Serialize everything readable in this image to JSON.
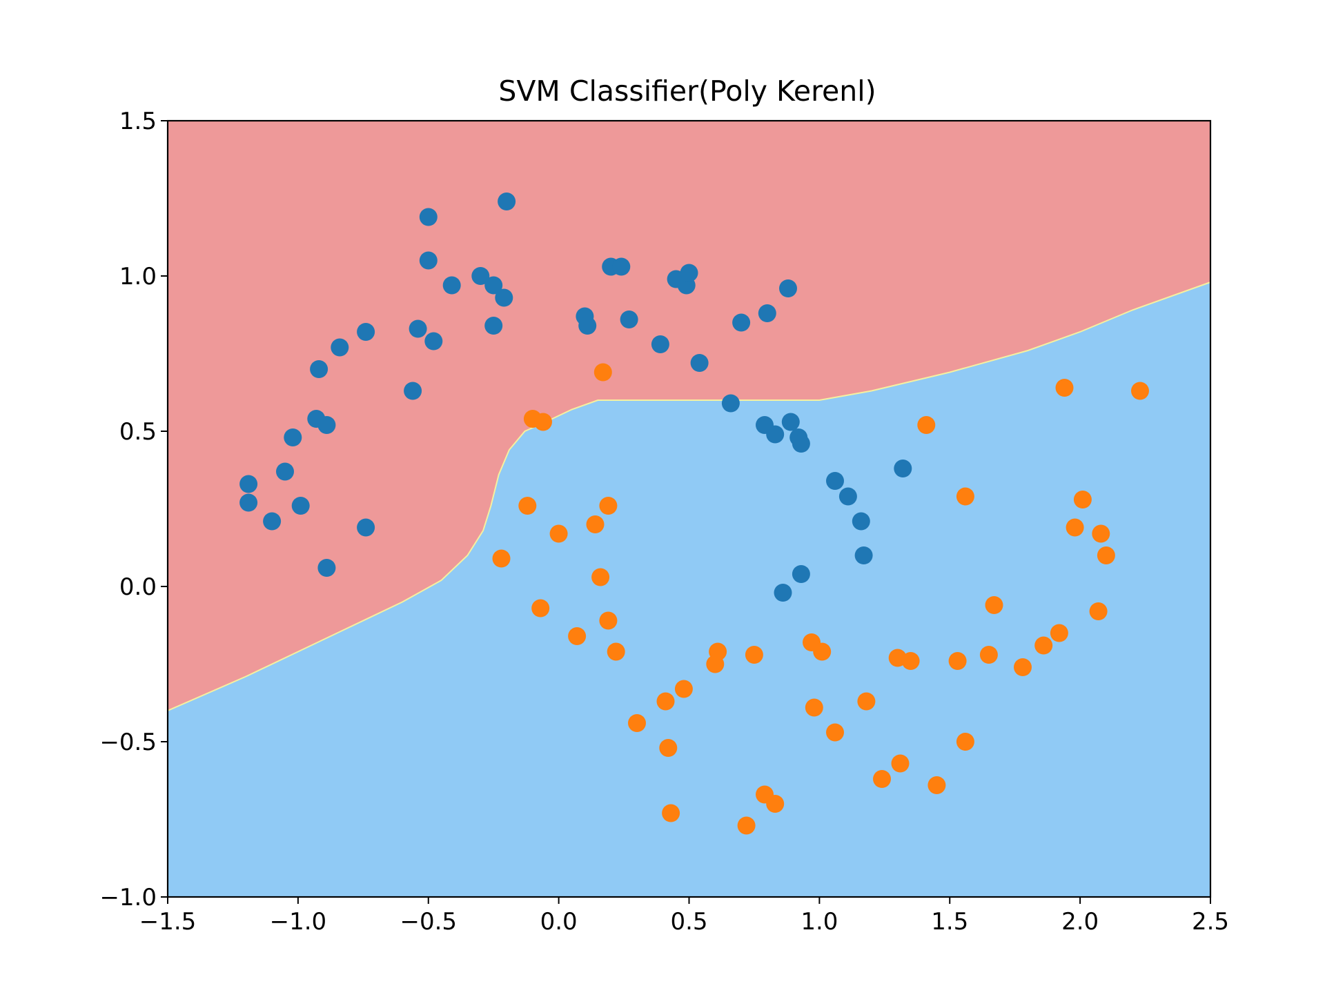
{
  "chart_data": {
    "type": "scatter",
    "title": "SVM Classifier(Poly Kerenl)",
    "xlabel": "",
    "ylabel": "",
    "xlim": [
      -1.5,
      2.5
    ],
    "ylim": [
      -1.0,
      1.5
    ],
    "xticks": [
      -1.5,
      -1.0,
      -0.5,
      0.0,
      0.5,
      1.0,
      1.5,
      2.0,
      2.5
    ],
    "xtick_labels": [
      "−1.5",
      "−1.0",
      "−0.5",
      "0.0",
      "0.5",
      "1.0",
      "1.5",
      "2.0",
      "2.5"
    ],
    "yticks": [
      -1.0,
      -0.5,
      0.0,
      0.5,
      1.0,
      1.5
    ],
    "ytick_labels": [
      "−1.0",
      "−0.5",
      "0.0",
      "0.5",
      "1.0",
      "1.5"
    ],
    "grid": false,
    "legend": "none",
    "regions": {
      "class0_color": "#ee9999",
      "class1_color": "#90caf5",
      "boundary_color": "#f5f0a0",
      "decision_boundary": [
        [
          -1.5,
          -0.4
        ],
        [
          -1.2,
          -0.29
        ],
        [
          -1.0,
          -0.21
        ],
        [
          -0.8,
          -0.13
        ],
        [
          -0.6,
          -0.05
        ],
        [
          -0.45,
          0.02
        ],
        [
          -0.35,
          0.1
        ],
        [
          -0.29,
          0.18
        ],
        [
          -0.26,
          0.26
        ],
        [
          -0.23,
          0.36
        ],
        [
          -0.19,
          0.44
        ],
        [
          -0.13,
          0.5
        ],
        [
          -0.05,
          0.53
        ],
        [
          0.05,
          0.57
        ],
        [
          0.15,
          0.6
        ],
        [
          0.4,
          0.6
        ],
        [
          0.7,
          0.6
        ],
        [
          1.0,
          0.6
        ],
        [
          1.2,
          0.63
        ],
        [
          1.5,
          0.69
        ],
        [
          1.8,
          0.76
        ],
        [
          2.0,
          0.82
        ],
        [
          2.2,
          0.89
        ],
        [
          2.5,
          0.98
        ]
      ]
    },
    "series": [
      {
        "color": "#1f77b4",
        "points": [
          [
            -1.19,
            0.33
          ],
          [
            -1.19,
            0.27
          ],
          [
            -1.1,
            0.21
          ],
          [
            -1.05,
            0.37
          ],
          [
            -1.02,
            0.48
          ],
          [
            -0.99,
            0.26
          ],
          [
            -0.93,
            0.54
          ],
          [
            -0.92,
            0.7
          ],
          [
            -0.89,
            0.52
          ],
          [
            -0.89,
            0.06
          ],
          [
            -0.84,
            0.77
          ],
          [
            -0.74,
            0.82
          ],
          [
            -0.74,
            0.19
          ],
          [
            -0.56,
            0.63
          ],
          [
            -0.54,
            0.83
          ],
          [
            -0.5,
            1.19
          ],
          [
            -0.5,
            1.05
          ],
          [
            -0.48,
            0.79
          ],
          [
            -0.41,
            0.97
          ],
          [
            -0.3,
            1.0
          ],
          [
            -0.25,
            0.97
          ],
          [
            -0.25,
            0.84
          ],
          [
            -0.21,
            0.93
          ],
          [
            -0.2,
            1.24
          ],
          [
            0.1,
            0.87
          ],
          [
            0.11,
            0.84
          ],
          [
            0.2,
            1.03
          ],
          [
            0.24,
            1.03
          ],
          [
            0.27,
            0.86
          ],
          [
            0.39,
            0.78
          ],
          [
            0.45,
            0.99
          ],
          [
            0.49,
            0.97
          ],
          [
            0.5,
            1.01
          ],
          [
            0.54,
            0.72
          ],
          [
            0.66,
            0.59
          ],
          [
            0.7,
            0.85
          ],
          [
            0.79,
            0.52
          ],
          [
            0.8,
            0.88
          ],
          [
            0.83,
            0.49
          ],
          [
            0.86,
            -0.02
          ],
          [
            0.88,
            0.96
          ],
          [
            0.89,
            0.53
          ],
          [
            0.92,
            0.48
          ],
          [
            0.93,
            0.04
          ],
          [
            0.93,
            0.46
          ],
          [
            1.06,
            0.34
          ],
          [
            1.11,
            0.29
          ],
          [
            1.16,
            0.21
          ],
          [
            1.17,
            0.1
          ],
          [
            1.32,
            0.38
          ]
        ]
      },
      {
        "color": "#ff7f0e",
        "points": [
          [
            -0.22,
            0.09
          ],
          [
            -0.12,
            0.26
          ],
          [
            -0.1,
            0.54
          ],
          [
            -0.07,
            -0.07
          ],
          [
            -0.06,
            0.53
          ],
          [
            0.0,
            0.17
          ],
          [
            0.07,
            -0.16
          ],
          [
            0.14,
            0.2
          ],
          [
            0.16,
            0.03
          ],
          [
            0.17,
            0.69
          ],
          [
            0.19,
            -0.11
          ],
          [
            0.19,
            0.26
          ],
          [
            0.22,
            -0.21
          ],
          [
            0.3,
            -0.44
          ],
          [
            0.41,
            -0.37
          ],
          [
            0.42,
            -0.52
          ],
          [
            0.43,
            -0.73
          ],
          [
            0.48,
            -0.33
          ],
          [
            0.6,
            -0.25
          ],
          [
            0.61,
            -0.21
          ],
          [
            0.75,
            -0.22
          ],
          [
            0.72,
            -0.77
          ],
          [
            0.79,
            -0.67
          ],
          [
            0.83,
            -0.7
          ],
          [
            0.97,
            -0.18
          ],
          [
            0.98,
            -0.39
          ],
          [
            1.01,
            -0.21
          ],
          [
            1.06,
            -0.47
          ],
          [
            1.18,
            -0.37
          ],
          [
            1.24,
            -0.62
          ],
          [
            1.3,
            -0.23
          ],
          [
            1.31,
            -0.57
          ],
          [
            1.35,
            -0.24
          ],
          [
            1.41,
            0.52
          ],
          [
            1.45,
            -0.64
          ],
          [
            1.53,
            -0.24
          ],
          [
            1.56,
            0.29
          ],
          [
            1.56,
            -0.5
          ],
          [
            1.65,
            -0.22
          ],
          [
            1.67,
            -0.06
          ],
          [
            1.78,
            -0.26
          ],
          [
            1.86,
            -0.19
          ],
          [
            1.92,
            -0.15
          ],
          [
            1.94,
            0.64
          ],
          [
            1.98,
            0.19
          ],
          [
            2.01,
            0.28
          ],
          [
            2.07,
            -0.08
          ],
          [
            2.08,
            0.17
          ],
          [
            2.1,
            0.1
          ],
          [
            2.23,
            0.63
          ]
        ]
      }
    ]
  }
}
